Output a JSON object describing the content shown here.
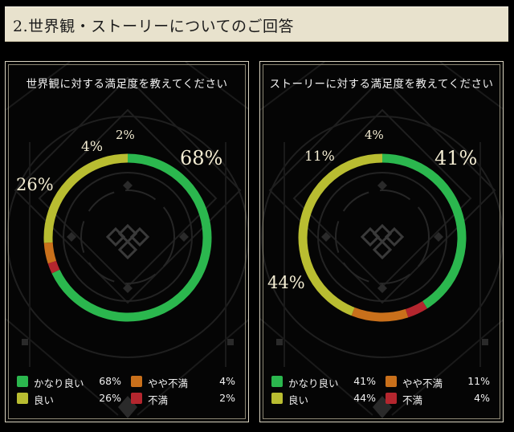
{
  "header": {
    "title": "2.世界観・ストーリーについてのご回答"
  },
  "colors": {
    "very_good": "#2bb74e",
    "good": "#b9bd31",
    "somewhat_bad": "#c9701b",
    "bad": "#b4262e",
    "header_bg": "#e8e2cd"
  },
  "panels": [
    {
      "title": "世界観に対する満足度を教えてください",
      "chart_data": {
        "type": "pie",
        "categories": [
          "かなり良い",
          "良い",
          "やや不満",
          "不満"
        ],
        "values": [
          68,
          26,
          4,
          2
        ]
      },
      "labels": [
        "68%",
        "26%",
        "4%",
        "2%"
      ],
      "legend": [
        {
          "label": "かなり良い",
          "value": "68%"
        },
        {
          "label": "良い",
          "value": "26%"
        },
        {
          "label": "やや不満",
          "value": "4%"
        },
        {
          "label": "不満",
          "value": "2%"
        }
      ]
    },
    {
      "title": "ストーリーに対する満足度を教えてください",
      "chart_data": {
        "type": "pie",
        "categories": [
          "かなり良い",
          "良い",
          "やや不満",
          "不満"
        ],
        "values": [
          41,
          44,
          11,
          4
        ]
      },
      "labels": [
        "41%",
        "44%",
        "11%",
        "4%"
      ],
      "legend": [
        {
          "label": "かなり良い",
          "value": "41%"
        },
        {
          "label": "良い",
          "value": "44%"
        },
        {
          "label": "やや不満",
          "value": "11%"
        },
        {
          "label": "不満",
          "value": "4%"
        }
      ]
    }
  ]
}
